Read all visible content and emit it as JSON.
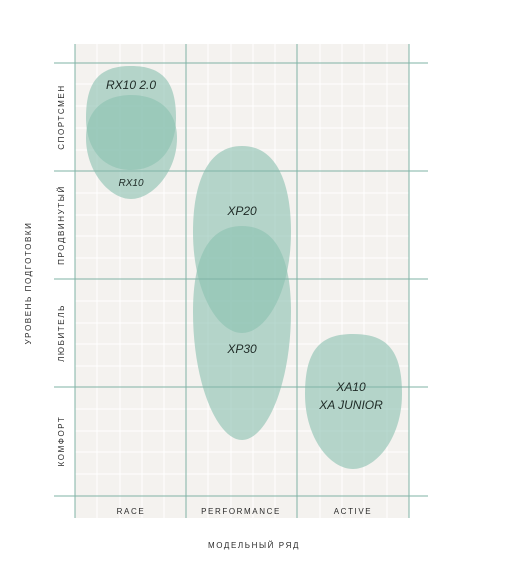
{
  "chart_data": {
    "type": "matrix",
    "xlabel": "МОДЕЛЬНЫЙ РЯД",
    "ylabel": "УРОВЕНЬ ПОДГОТОВКИ",
    "columns": [
      "RACE",
      "PERFORMANCE",
      "ACTIVE"
    ],
    "rows": [
      "СПОРТСМЕН",
      "ПРОДВИНУТЫЙ",
      "ЛЮБИТЕЛЬ",
      "КОМФОРТ"
    ],
    "colors": {
      "background": "#f4f2ef",
      "grid_major": "#7fb3a6",
      "grid_minor": "#ffffff",
      "blob": "#8cc2b2"
    },
    "models": [
      {
        "label": "RX10 2.0",
        "column": "RACE"
      },
      {
        "label": "RX10",
        "column": "RACE"
      },
      {
        "label": "XP20",
        "column": "PERFORMANCE"
      },
      {
        "label": "XP30",
        "column": "PERFORMANCE"
      },
      {
        "label": "XA10",
        "column": "ACTIVE"
      },
      {
        "label": "XA JUNIOR",
        "column": "ACTIVE"
      }
    ]
  }
}
